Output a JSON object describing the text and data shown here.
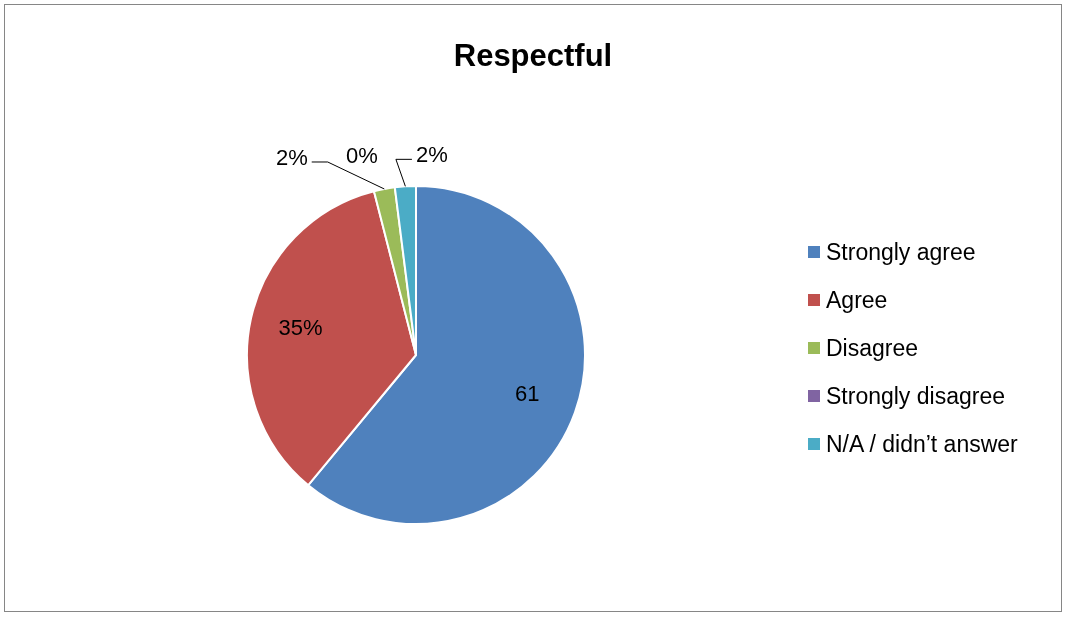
{
  "chart_data": {
    "type": "pie",
    "title": "Respectful",
    "categories": [
      "Strongly agree",
      "Agree",
      "Disagree",
      "Strongly disagree",
      "N/A / didn’t answer"
    ],
    "values": [
      61,
      35,
      2,
      0,
      2
    ],
    "colors": [
      "#4f81bd",
      "#c0504d",
      "#9bbb59",
      "#8064a2",
      "#4bacc6"
    ],
    "value_labels": [
      "61",
      "35%",
      "2%",
      "0%",
      "2%"
    ],
    "legend": "right"
  }
}
